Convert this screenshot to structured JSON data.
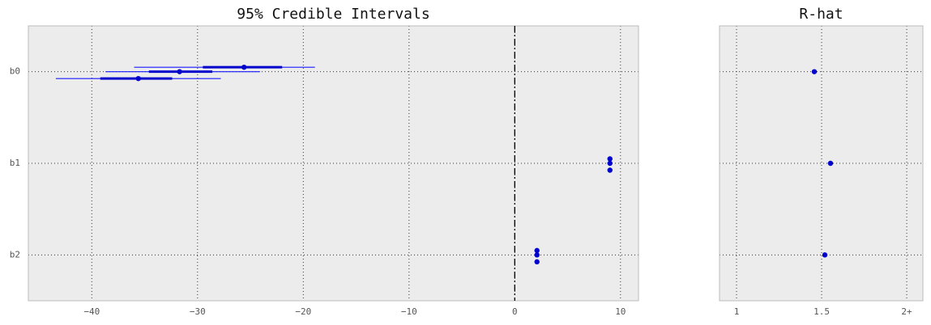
{
  "chart_data": [
    {
      "type": "forest",
      "title": "95% Credible Intervals",
      "categories": [
        "b0",
        "b1",
        "b2"
      ],
      "color": "#0000cc",
      "line_color": "#1a1aff",
      "refline": 0,
      "xlim": [
        -46,
        11.7
      ],
      "xticks": [
        {
          "value": -40,
          "label": "−40"
        },
        {
          "value": -30,
          "label": "−30"
        },
        {
          "value": -20,
          "label": "−20"
        },
        {
          "value": -10,
          "label": "−10"
        },
        0,
        10
      ],
      "grid": true,
      "chains": [
        {
          "median": [
            -25.6,
            9.0,
            2.1
          ],
          "inner": [
            [
              -29.5,
              -22.0
            ],
            [
              8.95,
              9.05
            ],
            [
              2.05,
              2.15
            ]
          ],
          "outer": [
            [
              -36.0,
              -18.9
            ],
            [
              8.9,
              9.1
            ],
            [
              2.0,
              2.2
            ]
          ]
        },
        {
          "median": [
            -31.7,
            9.0,
            2.1
          ],
          "inner": [
            [
              -34.6,
              -28.6
            ],
            [
              8.95,
              9.05
            ],
            [
              2.05,
              2.15
            ]
          ],
          "outer": [
            [
              -38.7,
              -24.1
            ],
            [
              8.9,
              9.1
            ],
            [
              2.0,
              2.2
            ]
          ]
        },
        {
          "median": [
            -35.6,
            9.0,
            2.1
          ],
          "inner": [
            [
              -39.2,
              -32.4
            ],
            [
              8.95,
              9.05
            ],
            [
              2.05,
              2.15
            ]
          ],
          "outer": [
            [
              -43.4,
              -27.8
            ],
            [
              8.9,
              9.1
            ],
            [
              2.0,
              2.2
            ]
          ]
        }
      ]
    },
    {
      "type": "dot",
      "title": "R-hat",
      "color": "#0000cc",
      "values": [
        1.457,
        1.552,
        1.519
      ],
      "xlim": [
        0.9,
        2.095
      ],
      "xticks": [
        1,
        1.5,
        {
          "value": 2,
          "label": "2+"
        }
      ],
      "grid": true
    }
  ]
}
